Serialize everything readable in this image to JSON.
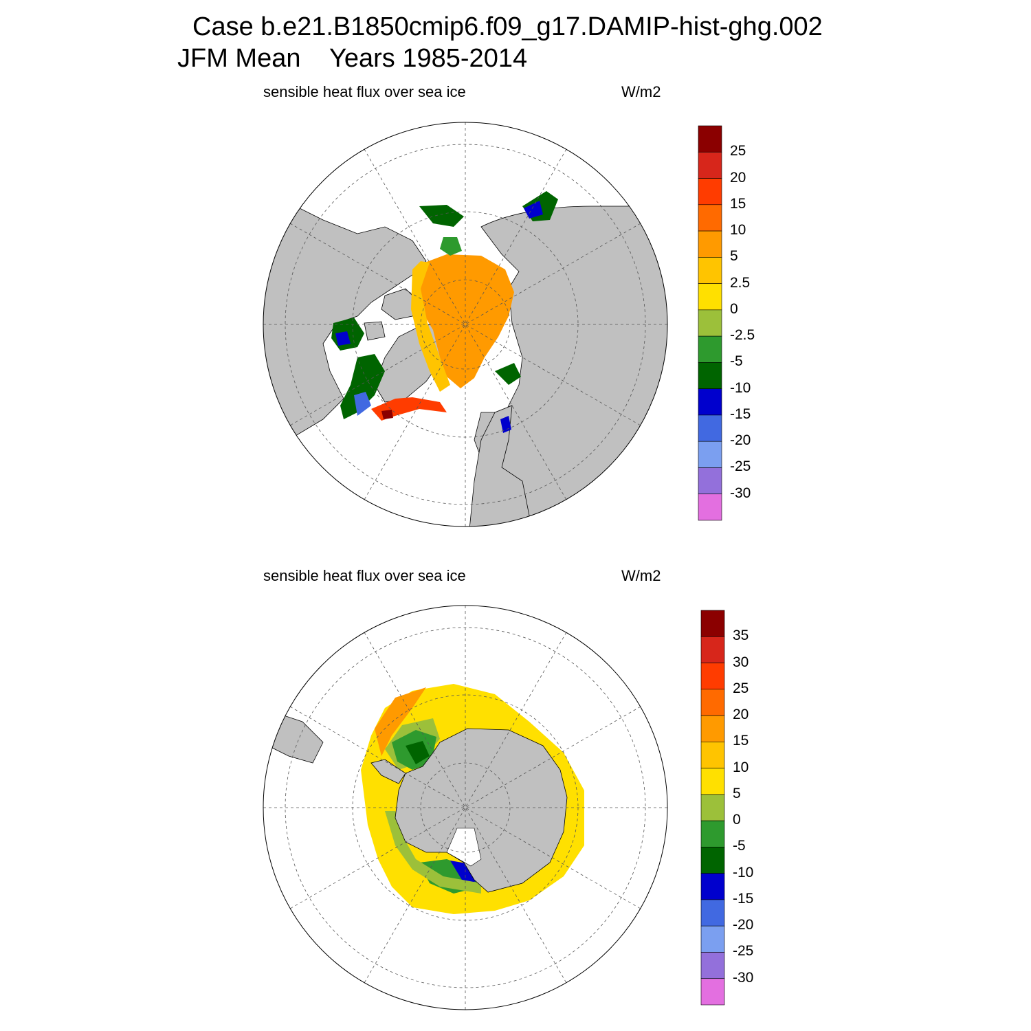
{
  "header": {
    "line1": "Case b.e21.B1850cmip6.f09_g17.DAMIP-hist-ghg.002",
    "season": "JFM Mean",
    "years": "Years 1985-2014"
  },
  "panels": [
    {
      "id": "north",
      "label": "sensible heat flux over sea ice",
      "units": "W/m2",
      "colorbar": {
        "labels": [
          "25",
          "20",
          "15",
          "10",
          "5",
          "2.5",
          "0",
          "-2.5",
          "-5",
          "-10",
          "-15",
          "-20",
          "-25",
          "-30"
        ],
        "colors": [
          "#8b0000",
          "#d7261b",
          "#ff3c00",
          "#ff6a00",
          "#ff9a00",
          "#ffc400",
          "#ffe000",
          "#9cc03a",
          "#2e9a2e",
          "#006400",
          "#0000cd",
          "#4169e1",
          "#7b9ff0",
          "#9370db",
          "#e36fe0"
        ]
      }
    },
    {
      "id": "south",
      "label": "sensible heat flux over sea ice",
      "units": "W/m2",
      "colorbar": {
        "labels": [
          "35",
          "30",
          "25",
          "20",
          "15",
          "10",
          "5",
          "0",
          "-5",
          "-10",
          "-15",
          "-20",
          "-25",
          "-30"
        ],
        "colors": [
          "#8b0000",
          "#d7261b",
          "#ff3c00",
          "#ff6a00",
          "#ff9a00",
          "#ffc400",
          "#ffe000",
          "#9cc03a",
          "#2e9a2e",
          "#006400",
          "#0000cd",
          "#4169e1",
          "#7b9ff0",
          "#9370db",
          "#e36fe0"
        ]
      }
    }
  ],
  "colors": {
    "land": "#c0c0c0",
    "ocean": "#ffffff",
    "grid": "#555555"
  }
}
